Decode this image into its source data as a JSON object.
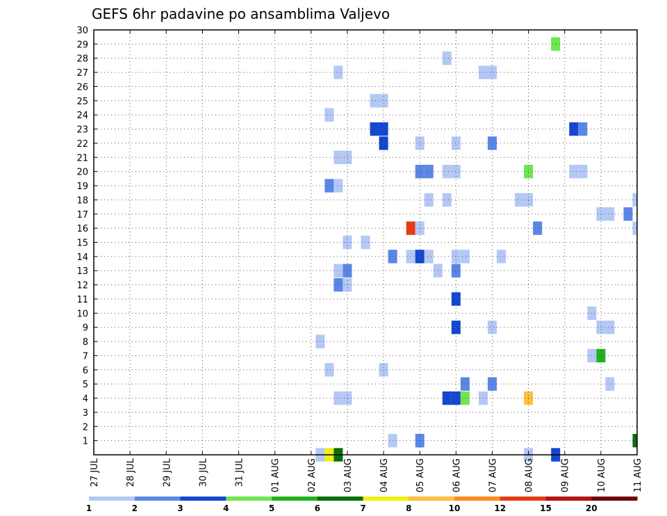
{
  "chart_data": {
    "type": "heatmap",
    "title": "GEFS 6hr padavine po ansamblima Valjevo",
    "xlabel": "",
    "ylabel": "",
    "x_tick_labels": [
      "27 JUL",
      "28 JUL",
      "29 JUL",
      "30 JUL",
      "31 JUL",
      "01 AUG",
      "02 AUG",
      "03 AUG",
      "04 AUG",
      "05 AUG",
      "06 AUG",
      "07 AUG",
      "08 AUG",
      "09 AUG",
      "10 AUG",
      "11 AUG"
    ],
    "xlim_days": [
      0,
      15
    ],
    "y_ticks": [
      1,
      2,
      3,
      4,
      5,
      6,
      7,
      8,
      9,
      10,
      11,
      12,
      13,
      14,
      15,
      16,
      17,
      18,
      19,
      20,
      21,
      22,
      23,
      24,
      25,
      26,
      27,
      28,
      29,
      30
    ],
    "ylim": [
      0,
      30
    ],
    "grid": true,
    "colorbar": {
      "labels": [
        "1",
        "2",
        "3",
        "4",
        "5",
        "6",
        "7",
        "8",
        "10",
        "12",
        "15",
        "20"
      ],
      "colors": [
        "#b4c8f5",
        "#5a87e6",
        "#1446d2",
        "#6ee650",
        "#1eb41e",
        "#0a6e0a",
        "#f0f014",
        "#ffbe3c",
        "#ff8c1e",
        "#e63c14",
        "#b41414",
        "#6e0a0a"
      ]
    },
    "cells": [
      {
        "day": 6.25,
        "member": 0,
        "color": 0
      },
      {
        "day": 6.5,
        "member": 0,
        "color": 6
      },
      {
        "day": 6.75,
        "member": 0,
        "color": 5
      },
      {
        "day": 12.0,
        "member": 0,
        "color": 0
      },
      {
        "day": 12.75,
        "member": 0,
        "color": 2
      },
      {
        "day": 15.0,
        "member": 1,
        "color": 5
      },
      {
        "day": 8.25,
        "member": 1,
        "color": 0
      },
      {
        "day": 9.0,
        "member": 1,
        "color": 1
      },
      {
        "day": 6.75,
        "member": 4,
        "color": 0
      },
      {
        "day": 7.0,
        "member": 4,
        "color": 0
      },
      {
        "day": 9.75,
        "member": 4,
        "color": 2
      },
      {
        "day": 10.0,
        "member": 4,
        "color": 2
      },
      {
        "day": 10.25,
        "member": 4,
        "color": 3
      },
      {
        "day": 10.75,
        "member": 4,
        "color": 0
      },
      {
        "day": 12.0,
        "member": 4,
        "color": 7
      },
      {
        "day": 10.25,
        "member": 5,
        "color": 1
      },
      {
        "day": 11.0,
        "member": 5,
        "color": 1
      },
      {
        "day": 14.25,
        "member": 5,
        "color": 0
      },
      {
        "day": 6.5,
        "member": 6,
        "color": 0
      },
      {
        "day": 8.0,
        "member": 6,
        "color": 0
      },
      {
        "day": 13.75,
        "member": 7,
        "color": 0
      },
      {
        "day": 14.0,
        "member": 7,
        "color": 4
      },
      {
        "day": 6.25,
        "member": 8,
        "color": 0
      },
      {
        "day": 10.0,
        "member": 9,
        "color": 2
      },
      {
        "day": 11.0,
        "member": 9,
        "color": 0
      },
      {
        "day": 14.0,
        "member": 9,
        "color": 0
      },
      {
        "day": 14.25,
        "member": 9,
        "color": 0
      },
      {
        "day": 13.75,
        "member": 10,
        "color": 0
      },
      {
        "day": 10.0,
        "member": 11,
        "color": 2
      },
      {
        "day": 6.75,
        "member": 12,
        "color": 1
      },
      {
        "day": 7.0,
        "member": 12,
        "color": 0
      },
      {
        "day": 6.75,
        "member": 13,
        "color": 0
      },
      {
        "day": 7.0,
        "member": 13,
        "color": 1
      },
      {
        "day": 9.5,
        "member": 13,
        "color": 0
      },
      {
        "day": 10.0,
        "member": 13,
        "color": 1
      },
      {
        "day": 8.25,
        "member": 14,
        "color": 1
      },
      {
        "day": 8.75,
        "member": 14,
        "color": 0
      },
      {
        "day": 9.0,
        "member": 14,
        "color": 2
      },
      {
        "day": 9.25,
        "member": 14,
        "color": 0
      },
      {
        "day": 10.0,
        "member": 14,
        "color": 0
      },
      {
        "day": 10.25,
        "member": 14,
        "color": 0
      },
      {
        "day": 11.25,
        "member": 14,
        "color": 0
      },
      {
        "day": 7.0,
        "member": 15,
        "color": 0
      },
      {
        "day": 7.5,
        "member": 15,
        "color": 0
      },
      {
        "day": 8.75,
        "member": 16,
        "color": 9
      },
      {
        "day": 9.0,
        "member": 16,
        "color": 0
      },
      {
        "day": 12.25,
        "member": 16,
        "color": 1
      },
      {
        "day": 15.0,
        "member": 16,
        "color": 0
      },
      {
        "day": 14.0,
        "member": 17,
        "color": 0
      },
      {
        "day": 14.25,
        "member": 17,
        "color": 0
      },
      {
        "day": 14.75,
        "member": 17,
        "color": 1
      },
      {
        "day": 9.25,
        "member": 18,
        "color": 0
      },
      {
        "day": 9.75,
        "member": 18,
        "color": 0
      },
      {
        "day": 11.75,
        "member": 18,
        "color": 0
      },
      {
        "day": 12.0,
        "member": 18,
        "color": 0
      },
      {
        "day": 15.0,
        "member": 18,
        "color": 0
      },
      {
        "day": 6.5,
        "member": 19,
        "color": 1
      },
      {
        "day": 6.75,
        "member": 19,
        "color": 0
      },
      {
        "day": 9.0,
        "member": 20,
        "color": 1
      },
      {
        "day": 9.25,
        "member": 20,
        "color": 1
      },
      {
        "day": 9.75,
        "member": 20,
        "color": 0
      },
      {
        "day": 10.0,
        "member": 20,
        "color": 0
      },
      {
        "day": 12.0,
        "member": 20,
        "color": 3
      },
      {
        "day": 13.25,
        "member": 20,
        "color": 0
      },
      {
        "day": 13.5,
        "member": 20,
        "color": 0
      },
      {
        "day": 6.75,
        "member": 21,
        "color": 0
      },
      {
        "day": 7.0,
        "member": 21,
        "color": 0
      },
      {
        "day": 8.0,
        "member": 22,
        "color": 2
      },
      {
        "day": 9.0,
        "member": 22,
        "color": 0
      },
      {
        "day": 10.0,
        "member": 22,
        "color": 0
      },
      {
        "day": 11.0,
        "member": 22,
        "color": 1
      },
      {
        "day": 7.75,
        "member": 23,
        "color": 2
      },
      {
        "day": 8.0,
        "member": 23,
        "color": 2
      },
      {
        "day": 13.25,
        "member": 23,
        "color": 2
      },
      {
        "day": 13.5,
        "member": 23,
        "color": 1
      },
      {
        "day": 6.5,
        "member": 24,
        "color": 0
      },
      {
        "day": 7.75,
        "member": 25,
        "color": 0
      },
      {
        "day": 8.0,
        "member": 25,
        "color": 0
      },
      {
        "day": 6.75,
        "member": 27,
        "color": 0
      },
      {
        "day": 10.75,
        "member": 27,
        "color": 0
      },
      {
        "day": 11.0,
        "member": 27,
        "color": 0
      },
      {
        "day": 9.75,
        "member": 28,
        "color": 0
      },
      {
        "day": 12.75,
        "member": 29,
        "color": 3
      }
    ]
  }
}
